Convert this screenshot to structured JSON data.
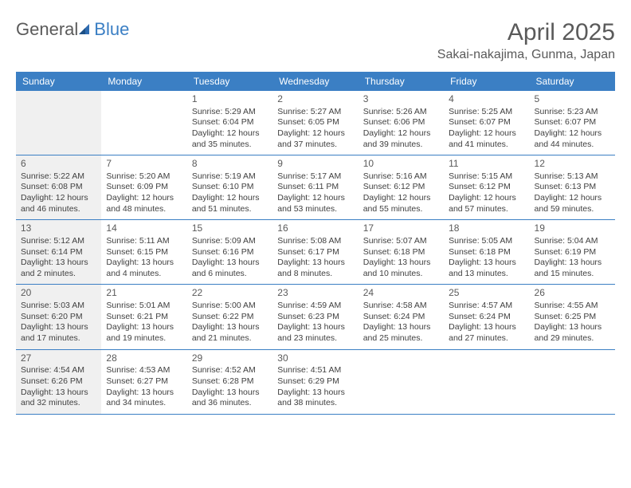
{
  "header": {
    "logo_general": "General",
    "logo_blue": "Blue",
    "month_title": "April 2025",
    "location": "Sakai-nakajima, Gunma, Japan"
  },
  "colors": {
    "accent": "#3b7fc4",
    "header_text": "#5a5a5a",
    "sunday_bg": "#f0f0f0",
    "cell_text": "#404040",
    "background": "#ffffff"
  },
  "day_headers": [
    "Sunday",
    "Monday",
    "Tuesday",
    "Wednesday",
    "Thursday",
    "Friday",
    "Saturday"
  ],
  "weeks": [
    [
      {
        "empty": true
      },
      {
        "empty": true
      },
      {
        "day": "1",
        "sunrise": "Sunrise: 5:29 AM",
        "sunset": "Sunset: 6:04 PM",
        "daylight": "Daylight: 12 hours and 35 minutes."
      },
      {
        "day": "2",
        "sunrise": "Sunrise: 5:27 AM",
        "sunset": "Sunset: 6:05 PM",
        "daylight": "Daylight: 12 hours and 37 minutes."
      },
      {
        "day": "3",
        "sunrise": "Sunrise: 5:26 AM",
        "sunset": "Sunset: 6:06 PM",
        "daylight": "Daylight: 12 hours and 39 minutes."
      },
      {
        "day": "4",
        "sunrise": "Sunrise: 5:25 AM",
        "sunset": "Sunset: 6:07 PM",
        "daylight": "Daylight: 12 hours and 41 minutes."
      },
      {
        "day": "5",
        "sunrise": "Sunrise: 5:23 AM",
        "sunset": "Sunset: 6:07 PM",
        "daylight": "Daylight: 12 hours and 44 minutes."
      }
    ],
    [
      {
        "day": "6",
        "sunrise": "Sunrise: 5:22 AM",
        "sunset": "Sunset: 6:08 PM",
        "daylight": "Daylight: 12 hours and 46 minutes."
      },
      {
        "day": "7",
        "sunrise": "Sunrise: 5:20 AM",
        "sunset": "Sunset: 6:09 PM",
        "daylight": "Daylight: 12 hours and 48 minutes."
      },
      {
        "day": "8",
        "sunrise": "Sunrise: 5:19 AM",
        "sunset": "Sunset: 6:10 PM",
        "daylight": "Daylight: 12 hours and 51 minutes."
      },
      {
        "day": "9",
        "sunrise": "Sunrise: 5:17 AM",
        "sunset": "Sunset: 6:11 PM",
        "daylight": "Daylight: 12 hours and 53 minutes."
      },
      {
        "day": "10",
        "sunrise": "Sunrise: 5:16 AM",
        "sunset": "Sunset: 6:12 PM",
        "daylight": "Daylight: 12 hours and 55 minutes."
      },
      {
        "day": "11",
        "sunrise": "Sunrise: 5:15 AM",
        "sunset": "Sunset: 6:12 PM",
        "daylight": "Daylight: 12 hours and 57 minutes."
      },
      {
        "day": "12",
        "sunrise": "Sunrise: 5:13 AM",
        "sunset": "Sunset: 6:13 PM",
        "daylight": "Daylight: 12 hours and 59 minutes."
      }
    ],
    [
      {
        "day": "13",
        "sunrise": "Sunrise: 5:12 AM",
        "sunset": "Sunset: 6:14 PM",
        "daylight": "Daylight: 13 hours and 2 minutes."
      },
      {
        "day": "14",
        "sunrise": "Sunrise: 5:11 AM",
        "sunset": "Sunset: 6:15 PM",
        "daylight": "Daylight: 13 hours and 4 minutes."
      },
      {
        "day": "15",
        "sunrise": "Sunrise: 5:09 AM",
        "sunset": "Sunset: 6:16 PM",
        "daylight": "Daylight: 13 hours and 6 minutes."
      },
      {
        "day": "16",
        "sunrise": "Sunrise: 5:08 AM",
        "sunset": "Sunset: 6:17 PM",
        "daylight": "Daylight: 13 hours and 8 minutes."
      },
      {
        "day": "17",
        "sunrise": "Sunrise: 5:07 AM",
        "sunset": "Sunset: 6:18 PM",
        "daylight": "Daylight: 13 hours and 10 minutes."
      },
      {
        "day": "18",
        "sunrise": "Sunrise: 5:05 AM",
        "sunset": "Sunset: 6:18 PM",
        "daylight": "Daylight: 13 hours and 13 minutes."
      },
      {
        "day": "19",
        "sunrise": "Sunrise: 5:04 AM",
        "sunset": "Sunset: 6:19 PM",
        "daylight": "Daylight: 13 hours and 15 minutes."
      }
    ],
    [
      {
        "day": "20",
        "sunrise": "Sunrise: 5:03 AM",
        "sunset": "Sunset: 6:20 PM",
        "daylight": "Daylight: 13 hours and 17 minutes."
      },
      {
        "day": "21",
        "sunrise": "Sunrise: 5:01 AM",
        "sunset": "Sunset: 6:21 PM",
        "daylight": "Daylight: 13 hours and 19 minutes."
      },
      {
        "day": "22",
        "sunrise": "Sunrise: 5:00 AM",
        "sunset": "Sunset: 6:22 PM",
        "daylight": "Daylight: 13 hours and 21 minutes."
      },
      {
        "day": "23",
        "sunrise": "Sunrise: 4:59 AM",
        "sunset": "Sunset: 6:23 PM",
        "daylight": "Daylight: 13 hours and 23 minutes."
      },
      {
        "day": "24",
        "sunrise": "Sunrise: 4:58 AM",
        "sunset": "Sunset: 6:24 PM",
        "daylight": "Daylight: 13 hours and 25 minutes."
      },
      {
        "day": "25",
        "sunrise": "Sunrise: 4:57 AM",
        "sunset": "Sunset: 6:24 PM",
        "daylight": "Daylight: 13 hours and 27 minutes."
      },
      {
        "day": "26",
        "sunrise": "Sunrise: 4:55 AM",
        "sunset": "Sunset: 6:25 PM",
        "daylight": "Daylight: 13 hours and 29 minutes."
      }
    ],
    [
      {
        "day": "27",
        "sunrise": "Sunrise: 4:54 AM",
        "sunset": "Sunset: 6:26 PM",
        "daylight": "Daylight: 13 hours and 32 minutes."
      },
      {
        "day": "28",
        "sunrise": "Sunrise: 4:53 AM",
        "sunset": "Sunset: 6:27 PM",
        "daylight": "Daylight: 13 hours and 34 minutes."
      },
      {
        "day": "29",
        "sunrise": "Sunrise: 4:52 AM",
        "sunset": "Sunset: 6:28 PM",
        "daylight": "Daylight: 13 hours and 36 minutes."
      },
      {
        "day": "30",
        "sunrise": "Sunrise: 4:51 AM",
        "sunset": "Sunset: 6:29 PM",
        "daylight": "Daylight: 13 hours and 38 minutes."
      },
      {
        "empty": true
      },
      {
        "empty": true
      },
      {
        "empty": true
      }
    ]
  ]
}
